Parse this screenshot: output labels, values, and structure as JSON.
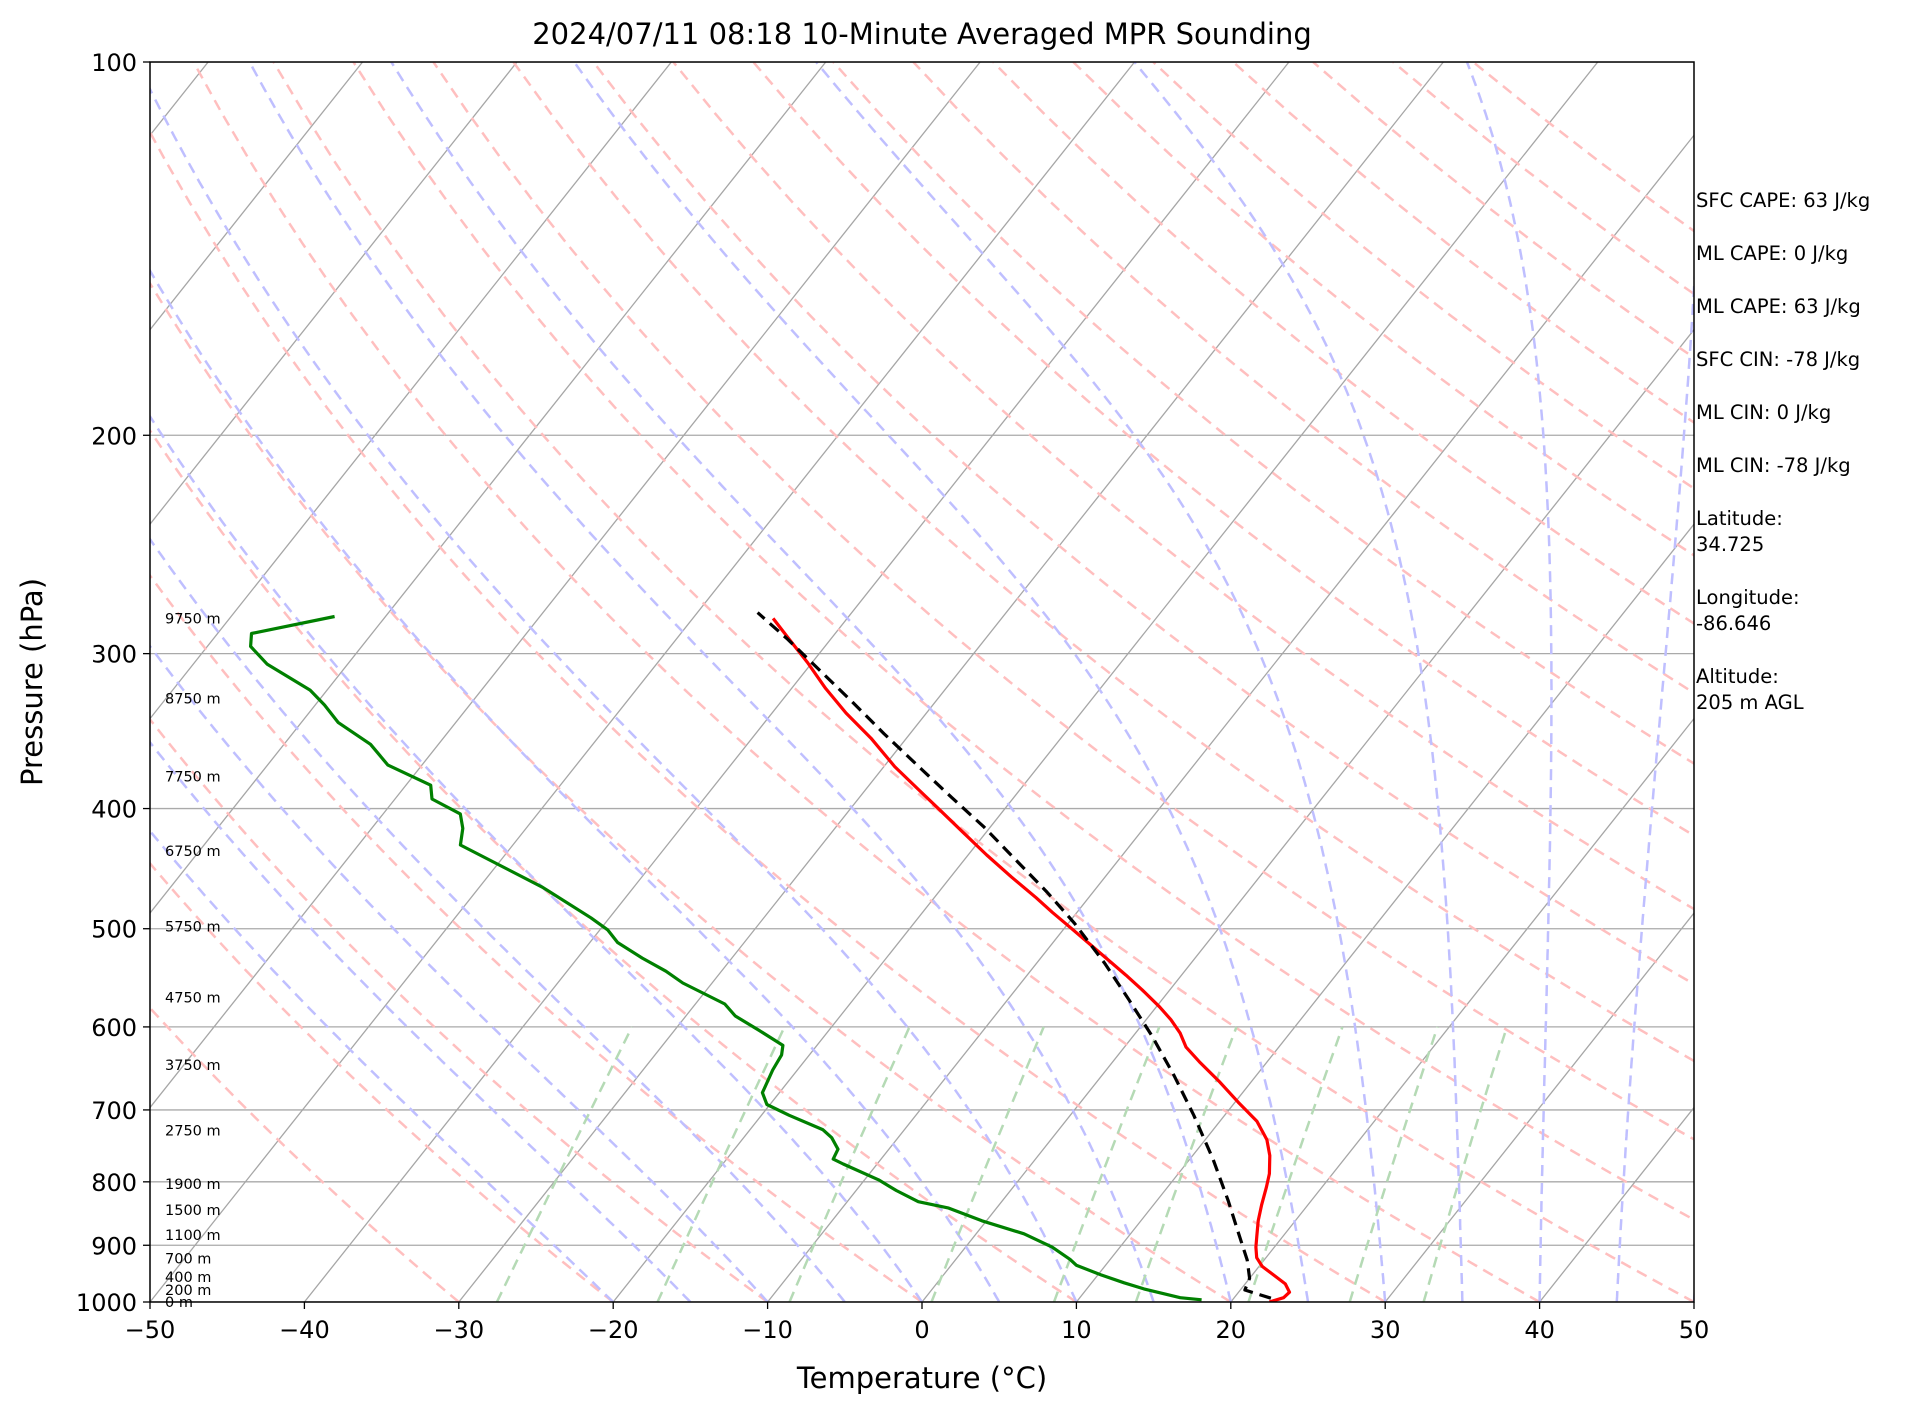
{
  "chart_data": {
    "type": "line",
    "subtype": "skew-t log-p",
    "title": "2024/07/11 08:18 10-Minute Averaged MPR Sounding",
    "xlabel": "Temperature (°C)",
    "ylabel": "Pressure (hPa)",
    "xlim": [
      -50,
      50
    ],
    "ylim": [
      1000,
      100
    ],
    "y_scale": "log",
    "x_ticks": [
      "−50",
      "−40",
      "−30",
      "−20",
      "−10",
      "0",
      "10",
      "20",
      "30",
      "40",
      "50"
    ],
    "y_ticks": [
      {
        "p": 100,
        "label": "100"
      },
      {
        "p": 200,
        "label": "200"
      },
      {
        "p": 300,
        "label": "300"
      },
      {
        "p": 400,
        "label": "400"
      },
      {
        "p": 500,
        "label": "500"
      },
      {
        "p": 600,
        "label": "600"
      },
      {
        "p": 700,
        "label": "700"
      },
      {
        "p": 800,
        "label": "800"
      },
      {
        "p": 900,
        "label": "900"
      },
      {
        "p": 1000,
        "label": "1000"
      }
    ],
    "grid": true,
    "height_labels": [
      {
        "p": 1000,
        "label": "0 m"
      },
      {
        "p": 978,
        "label": "200 m"
      },
      {
        "p": 955,
        "label": "400 m"
      },
      {
        "p": 922,
        "label": "700 m"
      },
      {
        "p": 883,
        "label": "1100 m"
      },
      {
        "p": 843,
        "label": "1500 m"
      },
      {
        "p": 803,
        "label": "1900 m"
      },
      {
        "p": 727,
        "label": "2750 m"
      },
      {
        "p": 644,
        "label": "3750 m"
      },
      {
        "p": 568,
        "label": "4750 m"
      },
      {
        "p": 498,
        "label": "5750 m"
      },
      {
        "p": 433,
        "label": "6750 m"
      },
      {
        "p": 377,
        "label": "7750 m"
      },
      {
        "p": 326,
        "label": "8750 m"
      },
      {
        "p": 281,
        "label": "9750 m"
      }
    ],
    "series": [
      {
        "color": "#ff0000",
        "style": "solid",
        "points": [
          [
            22.5,
            1000
          ],
          [
            23.2,
            992
          ],
          [
            23.3,
            982
          ],
          [
            22.6,
            967
          ],
          [
            21.3,
            950
          ],
          [
            20.2,
            936
          ],
          [
            19.4,
            921
          ],
          [
            18.8,
            903
          ],
          [
            18.3,
            885
          ],
          [
            17.6,
            860
          ],
          [
            17.0,
            835
          ],
          [
            16.4,
            808
          ],
          [
            15.9,
            788
          ],
          [
            15.0,
            762
          ],
          [
            14.0,
            740
          ],
          [
            12.4,
            715
          ],
          [
            10.2,
            690
          ],
          [
            8.0,
            665
          ],
          [
            5.6,
            640
          ],
          [
            4.0,
            623
          ],
          [
            2.9,
            607
          ],
          [
            1.6,
            592
          ],
          [
            0.2,
            578
          ],
          [
            -1.8,
            560
          ],
          [
            -3.6,
            545
          ],
          [
            -5.9,
            527
          ],
          [
            -7.6,
            514
          ],
          [
            -9.5,
            500
          ],
          [
            -11.6,
            485
          ],
          [
            -13.4,
            472
          ],
          [
            -16.1,
            454
          ],
          [
            -18.8,
            436
          ],
          [
            -21.5,
            418
          ],
          [
            -24.0,
            402
          ],
          [
            -26.6,
            386
          ],
          [
            -29.3,
            370
          ],
          [
            -32.3,
            351
          ],
          [
            -35.2,
            335
          ],
          [
            -37.8,
            320
          ],
          [
            -40.3,
            305
          ],
          [
            -42.7,
            292
          ],
          [
            -44.8,
            281
          ]
        ]
      },
      {
        "color": "#000000",
        "style": "dashed",
        "points": [
          [
            22.4,
            993
          ],
          [
            20.3,
            978
          ],
          [
            20.0,
            957
          ],
          [
            18.9,
            925
          ],
          [
            17.0,
            881
          ],
          [
            14.6,
            828
          ],
          [
            11.5,
            767
          ],
          [
            8.0,
            707
          ],
          [
            4.7,
            657
          ],
          [
            1.2,
            610
          ],
          [
            -2.1,
            571
          ],
          [
            -5.6,
            533
          ],
          [
            -9.6,
            495
          ],
          [
            -13.0,
            467
          ],
          [
            -16.8,
            439
          ],
          [
            -20.4,
            414
          ],
          [
            -24.0,
            392
          ],
          [
            -27.4,
            372
          ],
          [
            -31.7,
            348
          ],
          [
            -35.4,
            328
          ],
          [
            -39.2,
            309
          ],
          [
            -42.8,
            292
          ],
          [
            -46.1,
            278
          ]
        ]
      },
      {
        "color": "#008000",
        "style": "solid",
        "points": [
          [
            18.0,
            996
          ],
          [
            16.5,
            992
          ],
          [
            15.3,
            985
          ],
          [
            13.7,
            976
          ],
          [
            12.1,
            965
          ],
          [
            10.2,
            951
          ],
          [
            8.1,
            934
          ],
          [
            7.4,
            924
          ],
          [
            5.6,
            903
          ],
          [
            3.1,
            881
          ],
          [
            -0.3,
            860
          ],
          [
            -3.1,
            840
          ],
          [
            -5.4,
            830
          ],
          [
            -7.4,
            813
          ],
          [
            -9.1,
            797
          ],
          [
            -12.2,
            774
          ],
          [
            -13.1,
            767
          ],
          [
            -13.3,
            753
          ],
          [
            -14.3,
            737
          ],
          [
            -15.3,
            726
          ],
          [
            -18.2,
            707
          ],
          [
            -20.2,
            693
          ],
          [
            -21.1,
            678
          ],
          [
            -21.6,
            650
          ],
          [
            -21.8,
            632
          ],
          [
            -22.2,
            621
          ],
          [
            -24.5,
            604
          ],
          [
            -26.8,
            588
          ],
          [
            -28.1,
            575
          ],
          [
            -31.9,
            553
          ],
          [
            -33.6,
            541
          ],
          [
            -35.8,
            528
          ],
          [
            -38.2,
            513
          ],
          [
            -39.5,
            501
          ],
          [
            -41.2,
            490
          ],
          [
            -45.9,
            463
          ],
          [
            -53.4,
            428
          ],
          [
            -54.1,
            415
          ],
          [
            -55.0,
            404
          ],
          [
            -57.6,
            393
          ],
          [
            -58.4,
            383
          ],
          [
            -62.2,
            369
          ],
          [
            -64.4,
            355
          ],
          [
            -67.6,
            341
          ],
          [
            -69.4,
            330
          ],
          [
            -71.1,
            321
          ],
          [
            -75.2,
            306
          ],
          [
            -77.2,
            296
          ],
          [
            -77.8,
            289
          ],
          [
            -73.3,
            280
          ]
        ]
      }
    ]
  },
  "info": {
    "sfc_cape": "SFC CAPE: 63 J/kg",
    "ml_cape_1": "ML CAPE: 0 J/kg",
    "ml_cape_2": "ML CAPE: 63 J/kg",
    "sfc_cin": "SFC CIN: -78 J/kg",
    "ml_cin_1": "ML CIN: 0 J/kg",
    "ml_cin_2": "ML CIN: -78 J/kg",
    "latitude": "Latitude:\n34.725",
    "longitude": "Longitude:\n-86.646",
    "altitude": "Altitude:\n205 m AGL"
  },
  "colors": {
    "isotherm_grid": "#a6a6a6",
    "isobar_grid": "#aaaaaa",
    "dry_adiabat": "#ffbfbf",
    "moist_adiabat": "#bfbfff",
    "mixing_ratio": "#b5dab5"
  }
}
